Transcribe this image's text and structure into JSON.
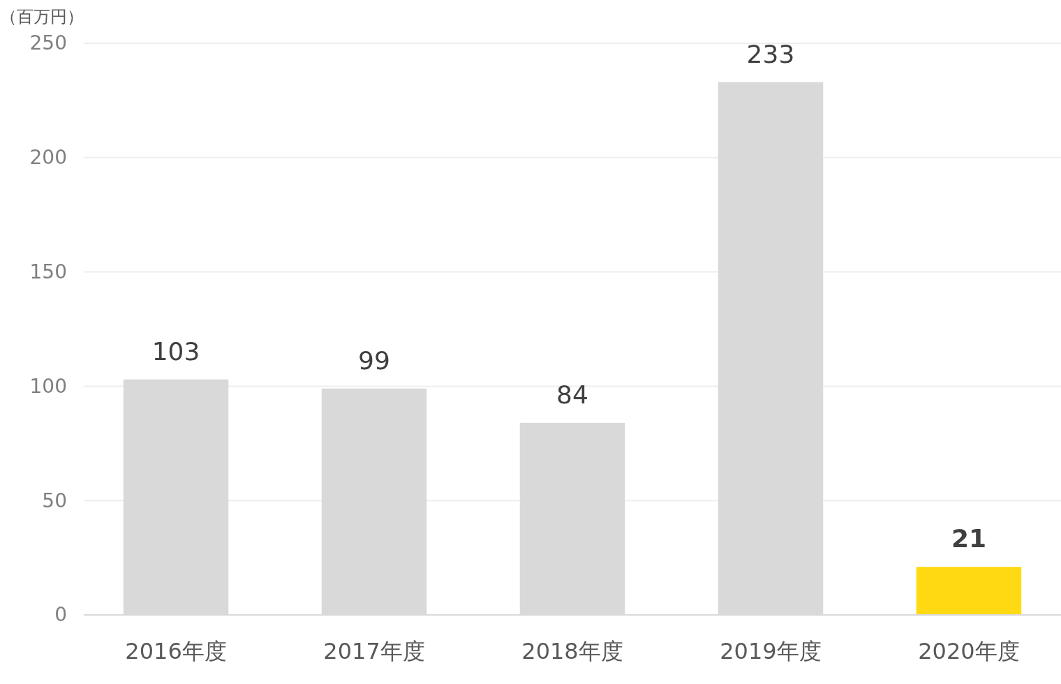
{
  "chart_data": {
    "type": "bar",
    "ylabel": "（百万円）",
    "categories": [
      "2016年度",
      "2017年度",
      "2018年度",
      "2019年度",
      "2020年度"
    ],
    "values": [
      103,
      99,
      84,
      233,
      21
    ],
    "colors": [
      "#d9d9d9",
      "#d9d9d9",
      "#d9d9d9",
      "#d9d9d9",
      "#ffda12"
    ],
    "ylim": [
      0,
      250
    ],
    "yticks": [
      0,
      50,
      100,
      150,
      200,
      250
    ],
    "grid": "y",
    "data_labels": true
  }
}
